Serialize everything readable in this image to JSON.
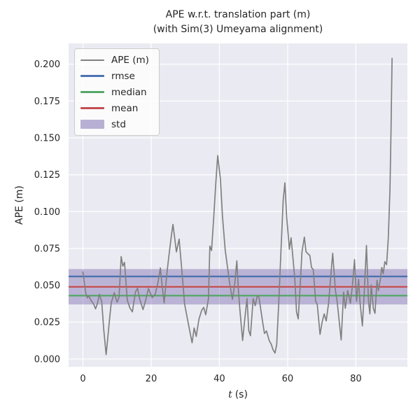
{
  "figure": {
    "title_line1": "APE w.r.t. translation part (m)",
    "title_line2": "(with Sim(3) Umeyama alignment)"
  },
  "axes": {
    "xlabel_var": "t",
    "xlabel_unit": "(s)",
    "ylabel": "APE (m)",
    "xlim": [
      -4.2,
      95.1
    ],
    "ylim": [
      -0.0053,
      0.2141
    ],
    "xticks": [
      0,
      20,
      40,
      60,
      80
    ],
    "yticks": [
      0.0,
      0.025,
      0.05,
      0.075,
      0.1,
      0.125,
      0.15,
      0.175,
      0.2
    ]
  },
  "colors": {
    "axes_bg": "#EAEAF2",
    "grid": "#FFFFFF",
    "text": "#262626",
    "ape": "#808080",
    "rmse": "#4C72B0",
    "median": "#55A868",
    "mean": "#C44E52",
    "std": "#8172B2"
  },
  "legend": {
    "items": [
      {
        "label": "APE (m)",
        "color": "#808080",
        "swatch": "thinline"
      },
      {
        "label": "rmse",
        "color": "#4C72B0",
        "swatch": "line"
      },
      {
        "label": "median",
        "color": "#55A868",
        "swatch": "line"
      },
      {
        "label": "mean",
        "color": "#C44E52",
        "swatch": "line"
      },
      {
        "label": "std",
        "color": "#8172B2",
        "swatch": "patch"
      }
    ]
  },
  "chart_data": {
    "type": "line",
    "title": "APE w.r.t. translation part (m) (with Sim(3) Umeyama alignment)",
    "xlabel": "t (s)",
    "ylabel": "APE (m)",
    "grid": true,
    "legend_position": "upper left",
    "series_name": "APE (m)",
    "stats": {
      "rmse": 0.056,
      "mean": 0.049,
      "median": 0.043,
      "std": 0.012
    },
    "t": [
      0.0,
      0.4,
      0.8,
      1.3,
      1.7,
      2.4,
      3.1,
      3.7,
      4.3,
      4.8,
      5.5,
      6.1,
      6.8,
      7.3,
      7.8,
      8.3,
      9.2,
      10.0,
      10.6,
      11.2,
      11.7,
      12.2,
      13.0,
      13.8,
      14.5,
      15.4,
      16.0,
      16.6,
      17.6,
      18.4,
      19.2,
      20.3,
      21.2,
      22.0,
      22.7,
      23.2,
      23.8,
      24.6,
      25.3,
      26.0,
      26.4,
      27.0,
      27.4,
      28.2,
      29.0,
      29.8,
      30.4,
      31.1,
      32.0,
      32.6,
      33.2,
      34.0,
      34.8,
      35.4,
      36.0,
      36.8,
      37.2,
      37.7,
      38.3,
      38.9,
      39.5,
      40.3,
      40.9,
      41.7,
      42.4,
      43.0,
      43.4,
      43.8,
      44.5,
      45.1,
      45.6,
      46.0,
      46.8,
      47.4,
      48.1,
      48.6,
      49.1,
      49.9,
      50.5,
      51.1,
      51.6,
      52.6,
      53.2,
      53.8,
      54.6,
      55.2,
      55.7,
      56.3,
      56.8,
      57.4,
      58.1,
      58.7,
      59.2,
      59.7,
      60.1,
      60.5,
      61.0,
      61.6,
      62.1,
      62.6,
      63.1,
      63.6,
      64.2,
      64.9,
      65.4,
      66.0,
      66.5,
      67.0,
      67.5,
      68.2,
      68.7,
      69.5,
      70.1,
      70.7,
      71.3,
      72.0,
      72.6,
      73.2,
      74.0,
      74.5,
      75.0,
      75.7,
      76.4,
      76.9,
      77.6,
      78.4,
      79.0,
      79.6,
      80.2,
      80.8,
      81.2,
      81.9,
      82.5,
      83.1,
      83.7,
      84.1,
      84.5,
      85.1,
      85.6,
      86.2,
      86.6,
      87.2,
      87.6,
      88.0,
      88.5,
      89.0,
      89.5,
      90.0,
      90.3,
      90.6
    ],
    "ape": [
      0.059,
      0.052,
      0.045,
      0.0415,
      0.043,
      0.0396,
      0.0375,
      0.034,
      0.038,
      0.044,
      0.039,
      0.02,
      0.003,
      0.015,
      0.027,
      0.038,
      0.045,
      0.0385,
      0.042,
      0.0695,
      0.063,
      0.0655,
      0.04,
      0.0345,
      0.032,
      0.0455,
      0.048,
      0.041,
      0.0335,
      0.04,
      0.0478,
      0.0416,
      0.044,
      0.052,
      0.0617,
      0.05,
      0.038,
      0.058,
      0.072,
      0.085,
      0.0913,
      0.08,
      0.0727,
      0.0813,
      0.06,
      0.0373,
      0.0301,
      0.0214,
      0.011,
      0.021,
      0.0153,
      0.027,
      0.033,
      0.035,
      0.03,
      0.041,
      0.0766,
      0.0736,
      0.095,
      0.118,
      0.138,
      0.122,
      0.097,
      0.074,
      0.062,
      0.051,
      0.046,
      0.0405,
      0.051,
      0.0666,
      0.046,
      0.0334,
      0.0125,
      0.0263,
      0.041,
      0.0192,
      0.0158,
      0.041,
      0.0362,
      0.0429,
      0.0419,
      0.0263,
      0.0173,
      0.019,
      0.0125,
      0.01,
      0.0064,
      0.004,
      0.01,
      0.038,
      0.077,
      0.108,
      0.1195,
      0.0966,
      0.086,
      0.0745,
      0.0822,
      0.0675,
      0.054,
      0.032,
      0.0272,
      0.047,
      0.0727,
      0.0827,
      0.0727,
      0.0712,
      0.0703,
      0.0621,
      0.0607,
      0.0392,
      0.0368,
      0.0167,
      0.0249,
      0.0306,
      0.0258,
      0.0378,
      0.055,
      0.0717,
      0.0464,
      0.0392,
      0.0282,
      0.0129,
      0.0454,
      0.0344,
      0.0464,
      0.0378,
      0.05,
      0.0674,
      0.0392,
      0.054,
      0.0392,
      0.0225,
      0.0473,
      0.077,
      0.0392,
      0.0306,
      0.0502,
      0.0344,
      0.031,
      0.0535,
      0.0464,
      0.0545,
      0.0621,
      0.0578,
      0.066,
      0.064,
      0.082,
      0.115,
      0.155,
      0.204
    ]
  }
}
